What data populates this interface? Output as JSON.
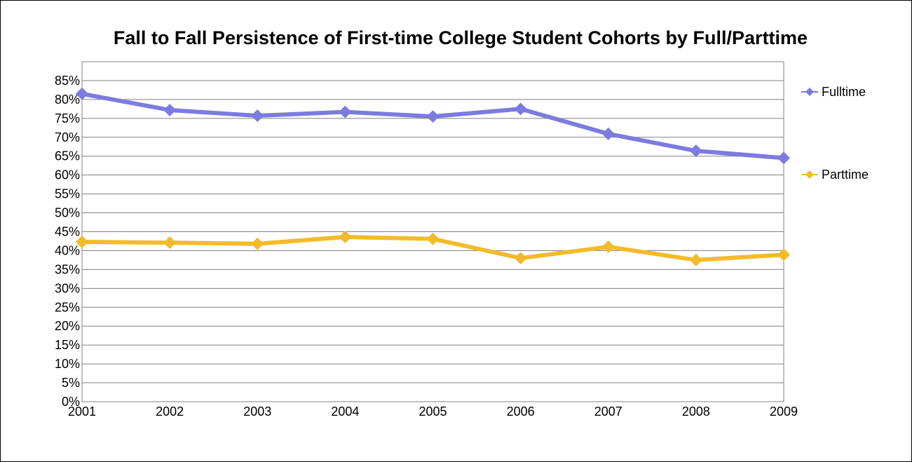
{
  "chart_data": {
    "type": "line",
    "title": "Fall to Fall Persistence of First-time College Student Cohorts by Full/Parttime",
    "xlabel": "",
    "ylabel": "",
    "categories": [
      "2001",
      "2002",
      "2003",
      "2004",
      "2005",
      "2006",
      "2007",
      "2008",
      "2009"
    ],
    "y_ticks": [
      "0%",
      "5%",
      "10%",
      "15%",
      "20%",
      "25%",
      "30%",
      "35%",
      "40%",
      "45%",
      "50%",
      "55%",
      "60%",
      "65%",
      "70%",
      "75%",
      "80%",
      "85%"
    ],
    "ylim": [
      0,
      90
    ],
    "grid": true,
    "legend_position": "right",
    "series": [
      {
        "name": "Fulltime",
        "color": "#7b7be0",
        "values": [
          81.5,
          77.2,
          75.7,
          76.7,
          75.5,
          77.5,
          70.9,
          66.4,
          64.5
        ]
      },
      {
        "name": "Parttime",
        "color": "#f2bb2b",
        "values": [
          42.3,
          42.1,
          41.8,
          43.6,
          43.1,
          38.0,
          41.0,
          37.5,
          38.9
        ]
      }
    ]
  }
}
